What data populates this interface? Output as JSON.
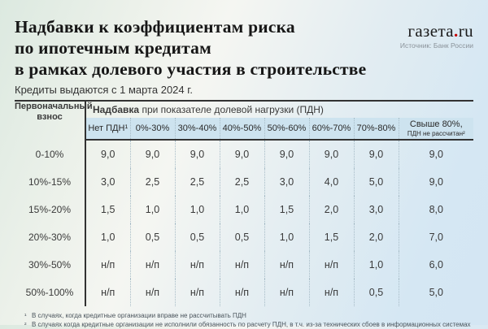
{
  "header": {
    "title_lines": [
      "Надбавки к коэффициентам риска",
      "по ипотечным кредитам",
      "в рамках долевого участия в строительстве"
    ],
    "subtitle": "Кредиты выдаются с 1 марта 2024 г.",
    "logo": {
      "word": "газета",
      "dot": ".",
      "tld": "ru",
      "source": "Источник: Банк России"
    }
  },
  "chart_data": {
    "type": "table",
    "title": "Надбавки к коэффициентам риска по ипотечным кредитам в рамках долевого участия в строительстве",
    "subtitle": "Кредиты выдаются с 1 марта 2024 г.",
    "row_dimension_lines": [
      "Первоначальный",
      "взнос"
    ],
    "group_label_bold": "Надбавка",
    "group_label_rest": " при показателе долевой нагрузки (ПДН)",
    "columns": [
      [
        "Нет ПДН¹"
      ],
      [
        "0%-30%"
      ],
      [
        "30%-40%"
      ],
      [
        "40%-50%"
      ],
      [
        "50%-60%"
      ],
      [
        "60%-70%"
      ],
      [
        "70%-80%"
      ],
      [
        "Свыше 80%,",
        "ПДН не рассчитан²"
      ]
    ],
    "rows": [
      {
        "label": "0-10%",
        "values": [
          "9,0",
          "9,0",
          "9,0",
          "9,0",
          "9,0",
          "9,0",
          "9,0",
          "9,0"
        ]
      },
      {
        "label": "10%-15%",
        "values": [
          "3,0",
          "2,5",
          "2,5",
          "2,5",
          "3,0",
          "4,0",
          "5,0",
          "9,0"
        ]
      },
      {
        "label": "15%-20%",
        "values": [
          "1,5",
          "1,0",
          "1,0",
          "1,0",
          "1,5",
          "2,0",
          "3,0",
          "8,0"
        ]
      },
      {
        "label": "20%-30%",
        "values": [
          "1,0",
          "0,5",
          "0,5",
          "0,5",
          "1,0",
          "1,5",
          "2,0",
          "7,0"
        ]
      },
      {
        "label": "30%-50%",
        "values": [
          "н/п",
          "н/п",
          "н/п",
          "н/п",
          "н/п",
          "н/п",
          "1,0",
          "6,0"
        ]
      },
      {
        "label": "50%-100%",
        "values": [
          "н/п",
          "н/п",
          "н/п",
          "н/п",
          "н/п",
          "н/п",
          "0,5",
          "5,0"
        ]
      }
    ],
    "na_value": "н/п"
  },
  "footnotes": [
    {
      "marker": "¹",
      "text": "В случаях, когда кредитные организации вправе не рассчитывать ПДН"
    },
    {
      "marker": "²",
      "text": "В случаях когда кредитные организации не исполнили обязанность по расчету ПДН, в т.ч. из-за технических сбоев в информационных системах"
    }
  ],
  "colors": {
    "band_background": "#cde3ef",
    "table_line": "#323232",
    "dotted_separator": "#a7bcc7",
    "logo_dot": "#c40000",
    "background_left": "#dce9e0",
    "background_right": "#d4e6f3"
  }
}
